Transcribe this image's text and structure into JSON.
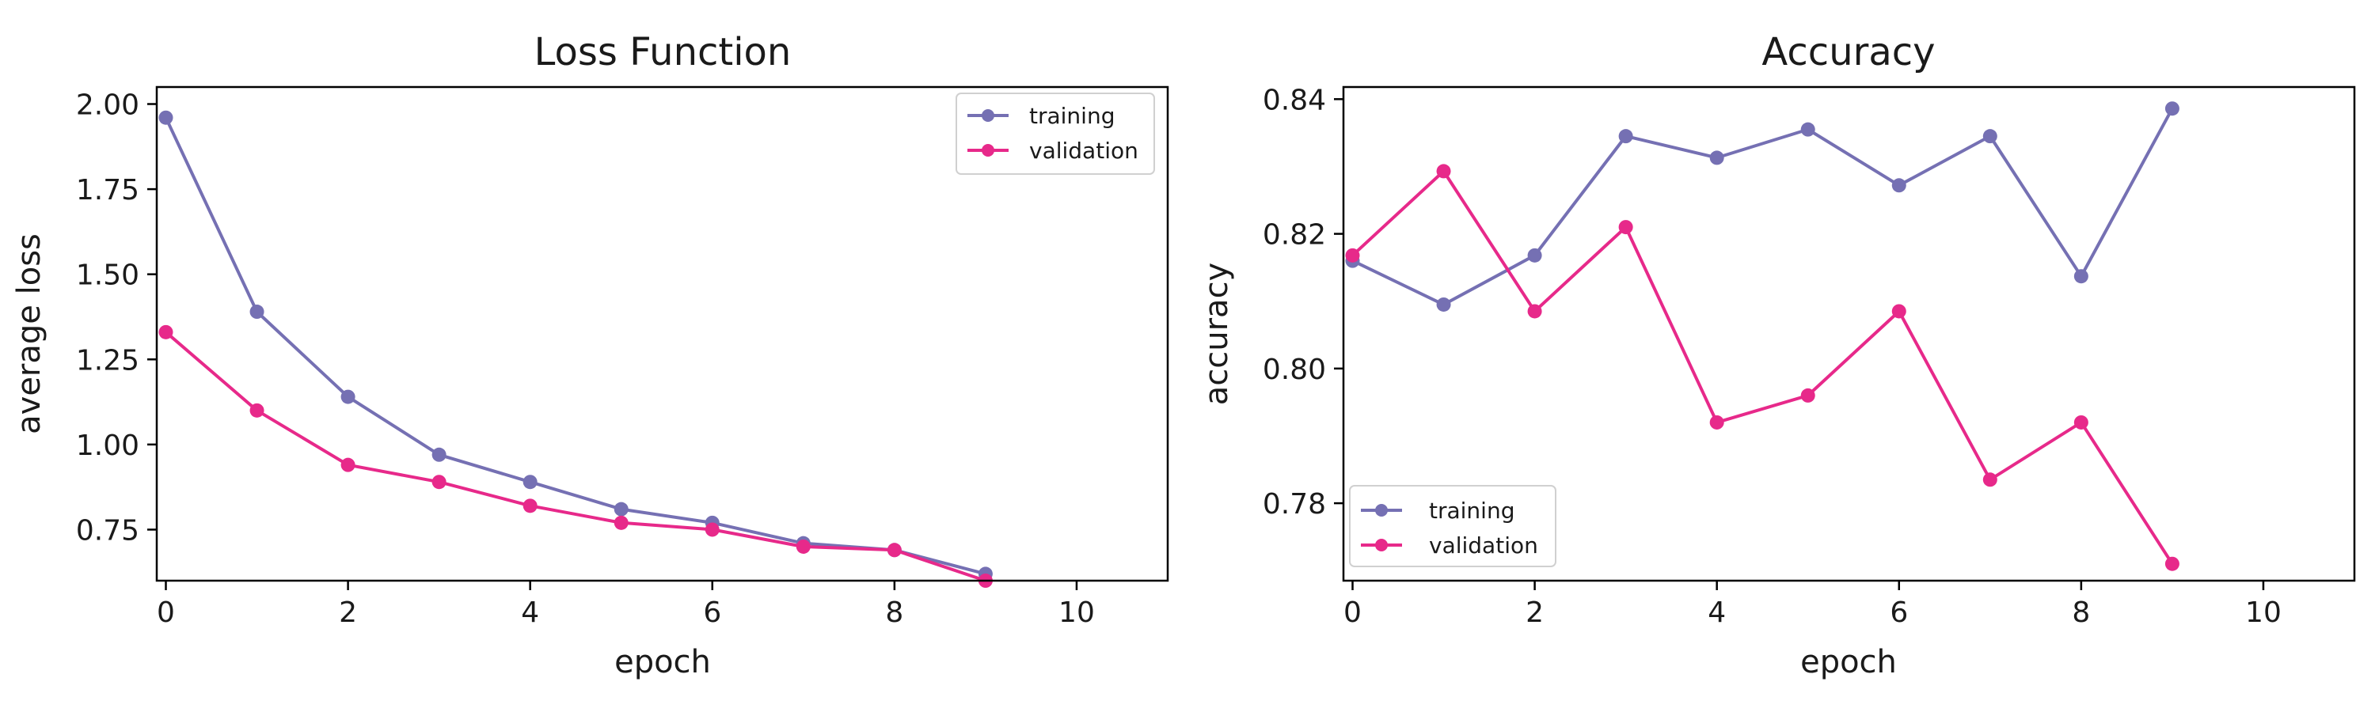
{
  "chart_data": [
    {
      "type": "line",
      "title": "Loss Function",
      "xlabel": "epoch",
      "ylabel": "average loss",
      "xlim": [
        -0.1,
        11
      ],
      "ylim": [
        0.6,
        2.05
      ],
      "xticks": [
        0,
        2,
        4,
        6,
        8,
        10
      ],
      "xtick_labels": [
        "0",
        "2",
        "4",
        "6",
        "8",
        "10"
      ],
      "yticks": [
        0.75,
        1.0,
        1.25,
        1.5,
        1.75,
        2.0
      ],
      "ytick_labels": [
        "0.75",
        "1.00",
        "1.25",
        "1.50",
        "1.75",
        "2.00"
      ],
      "grid": false,
      "legend": "top-right",
      "x": [
        0,
        1,
        2,
        3,
        4,
        5,
        6,
        7,
        8,
        9
      ],
      "series": [
        {
          "name": "training",
          "color": "#7570b3",
          "values": [
            1.96,
            1.39,
            1.14,
            0.97,
            0.89,
            0.81,
            0.77,
            0.71,
            0.69,
            0.62
          ]
        },
        {
          "name": "validation",
          "color": "#e7298a",
          "values": [
            1.33,
            1.1,
            0.94,
            0.89,
            0.82,
            0.77,
            0.75,
            0.7,
            0.69,
            0.6
          ]
        }
      ]
    },
    {
      "type": "line",
      "title": "Accuracy",
      "xlabel": "epoch",
      "ylabel": "accuracy",
      "xlim": [
        -0.1,
        11
      ],
      "ylim": [
        0.7685,
        0.8418
      ],
      "xticks": [
        0,
        2,
        4,
        6,
        8,
        10
      ],
      "xtick_labels": [
        "0",
        "2",
        "4",
        "6",
        "8",
        "10"
      ],
      "yticks": [
        0.78,
        0.8,
        0.82,
        0.84
      ],
      "ytick_labels": [
        "0.78",
        "0.80",
        "0.82",
        "0.84"
      ],
      "grid": false,
      "legend": "bottom-left",
      "x": [
        0,
        1,
        2,
        3,
        4,
        5,
        6,
        7,
        8,
        9
      ],
      "series": [
        {
          "name": "training",
          "color": "#7570b3",
          "values": [
            0.816,
            0.8095,
            0.8168,
            0.8345,
            0.8313,
            0.8355,
            0.8272,
            0.8345,
            0.8137,
            0.8386
          ]
        },
        {
          "name": "validation",
          "color": "#e7298a",
          "values": [
            0.8168,
            0.8293,
            0.8085,
            0.821,
            0.792,
            0.796,
            0.8085,
            0.7835,
            0.792,
            0.771
          ]
        }
      ]
    }
  ]
}
